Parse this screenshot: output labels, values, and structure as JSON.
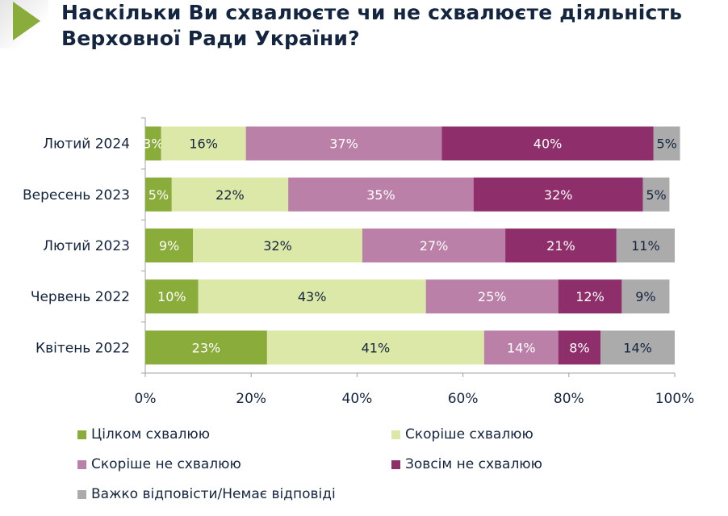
{
  "header": {
    "title_line1": "Наскільки Ви схвалюєте чи не схвалюєте діяльність",
    "title_line2": "Верховної Ради України?",
    "accent_color": "#8aac3a"
  },
  "chart_data": {
    "type": "bar",
    "orientation": "horizontal",
    "stacked": true,
    "percent_stacked": true,
    "title": "Наскільки Ви схвалюєте чи не схвалюєте діяльність Верховної Ради України?",
    "categories": [
      "Лютий 2024",
      "Вересень 2023",
      "Лютий 2023",
      "Червень 2022",
      "Квітень 2022"
    ],
    "series": [
      {
        "name": "Цілком схвалюю",
        "color": "#8aac3a",
        "label_color": "#ffffff",
        "values": [
          3,
          5,
          9,
          10,
          23
        ]
      },
      {
        "name": "Скоріше схвалюю",
        "color": "#dbe8a8",
        "label_color": "#14253f",
        "values": [
          16,
          22,
          32,
          43,
          41
        ]
      },
      {
        "name": "Скоріше не схвалюю",
        "color": "#bb80a8",
        "label_color": "#ffffff",
        "values": [
          37,
          35,
          27,
          25,
          14
        ]
      },
      {
        "name": "Зовсім не схвалюю",
        "color": "#8e2f6c",
        "label_color": "#ffffff",
        "values": [
          40,
          32,
          21,
          12,
          8
        ]
      },
      {
        "name": "Важко відповісти/Немає відповіді",
        "color": "#ababab",
        "label_color": "#14253f",
        "values": [
          5,
          5,
          11,
          9,
          14
        ]
      }
    ],
    "xlabel": "",
    "ylabel": "",
    "xlim": [
      0,
      100
    ],
    "x_ticks": [
      0,
      20,
      40,
      60,
      80,
      100
    ],
    "x_tick_labels": [
      "0%",
      "20%",
      "40%",
      "60%",
      "80%",
      "100%"
    ],
    "value_suffix": "%",
    "grid": false,
    "legend_position": "bottom"
  }
}
